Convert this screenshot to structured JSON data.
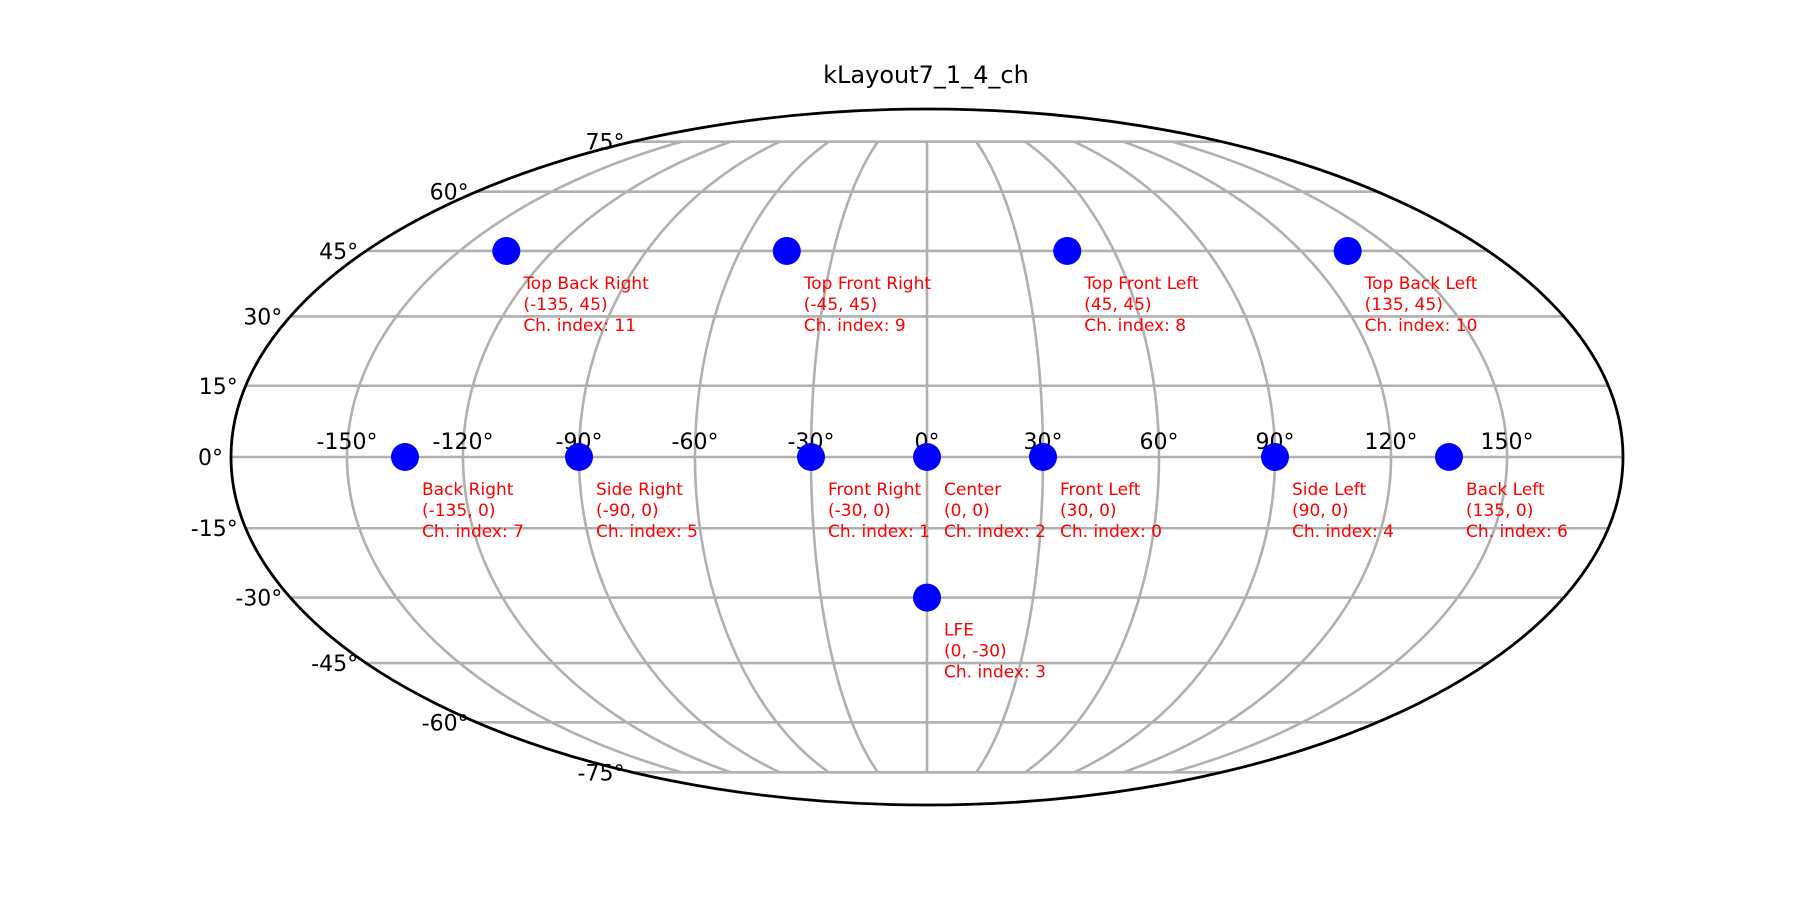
{
  "chart_data": {
    "type": "scatter",
    "projection": "mollweide",
    "title": "kLayout7_1_4_ch",
    "xlabel": "",
    "ylabel": "",
    "xlim": [
      -180,
      180
    ],
    "ylim": [
      -90,
      90
    ],
    "grid": true,
    "colors": {
      "marker": "#0000ff",
      "label": "#ff0000",
      "grid": "#b0b0b0",
      "frame": "#000000"
    },
    "x_ticks": [
      {
        "value": -150,
        "label": "-150°"
      },
      {
        "value": -120,
        "label": "-120°"
      },
      {
        "value": -90,
        "label": "-90°"
      },
      {
        "value": -60,
        "label": "-60°"
      },
      {
        "value": -30,
        "label": "-30°"
      },
      {
        "value": 0,
        "label": "0°"
      },
      {
        "value": 30,
        "label": "30°"
      },
      {
        "value": 60,
        "label": "60°"
      },
      {
        "value": 90,
        "label": "90°"
      },
      {
        "value": 120,
        "label": "120°"
      },
      {
        "value": 150,
        "label": "150°"
      }
    ],
    "y_ticks": [
      {
        "value": 75,
        "label": "75°"
      },
      {
        "value": 60,
        "label": "60°"
      },
      {
        "value": 45,
        "label": "45°"
      },
      {
        "value": 30,
        "label": "30°"
      },
      {
        "value": 15,
        "label": "15°"
      },
      {
        "value": 0,
        "label": "0°"
      },
      {
        "value": -15,
        "label": "-15°"
      },
      {
        "value": -30,
        "label": "-30°"
      },
      {
        "value": -45,
        "label": "-45°"
      },
      {
        "value": -60,
        "label": "-60°"
      },
      {
        "value": -75,
        "label": "-75°"
      }
    ],
    "points": [
      {
        "name": "Front Left",
        "azimuth": 30,
        "elevation": 0,
        "coords": "(30, 0)",
        "index_label": "Ch. index: 0"
      },
      {
        "name": "Front Right",
        "azimuth": -30,
        "elevation": 0,
        "coords": "(-30, 0)",
        "index_label": "Ch. index: 1"
      },
      {
        "name": "Center",
        "azimuth": 0,
        "elevation": 0,
        "coords": "(0, 0)",
        "index_label": "Ch. index: 2"
      },
      {
        "name": "LFE",
        "azimuth": 0,
        "elevation": -30,
        "coords": "(0, -30)",
        "index_label": "Ch. index: 3"
      },
      {
        "name": "Side Left",
        "azimuth": 90,
        "elevation": 0,
        "coords": "(90, 0)",
        "index_label": "Ch. index: 4"
      },
      {
        "name": "Side Right",
        "azimuth": -90,
        "elevation": 0,
        "coords": "(-90, 0)",
        "index_label": "Ch. index: 5"
      },
      {
        "name": "Back Left",
        "azimuth": 135,
        "elevation": 0,
        "coords": "(135, 0)",
        "index_label": "Ch. index: 6"
      },
      {
        "name": "Back Right",
        "azimuth": -135,
        "elevation": 0,
        "coords": "(-135, 0)",
        "index_label": "Ch. index: 7"
      },
      {
        "name": "Top Front Left",
        "azimuth": 45,
        "elevation": 45,
        "coords": "(45, 45)",
        "index_label": "Ch. index: 8"
      },
      {
        "name": "Top Front Right",
        "azimuth": -45,
        "elevation": 45,
        "coords": "(-45, 45)",
        "index_label": "Ch. index: 9"
      },
      {
        "name": "Top Back Left",
        "azimuth": 135,
        "elevation": 45,
        "coords": "(135, 45)",
        "index_label": "Ch. index: 10"
      },
      {
        "name": "Top Back Right",
        "azimuth": -135,
        "elevation": 45,
        "coords": "(-135, 45)",
        "index_label": "Ch. index: 11"
      }
    ]
  }
}
